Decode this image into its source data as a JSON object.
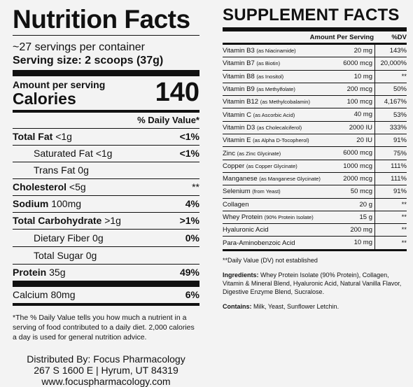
{
  "nutrition": {
    "title": "Nutrition Facts",
    "servings": "~27 servings per container",
    "serving_size_label": "Serving size",
    "serving_size_value": "2 scoops (37g)",
    "amount_per_serving": "Amount per serving",
    "calories_label": "Calories",
    "calories_value": "140",
    "dv_header": "% Daily Value*",
    "rows": [
      {
        "label": "Total Fat",
        "amount": "<1g",
        "dv": "<1%"
      },
      {
        "label": "Saturated Fat",
        "amount": "<1g",
        "dv": "<1%"
      },
      {
        "label": "Trans Fat",
        "amount": "0g",
        "dv": ""
      },
      {
        "label": "Cholesterol",
        "amount": "<5g",
        "dv": "**"
      },
      {
        "label": "Sodium",
        "amount": "100mg",
        "dv": "4%"
      },
      {
        "label": "Total Carbohydrate",
        "amount": ">1g",
        "dv": ">1%"
      },
      {
        "label": "Dietary Fiber",
        "amount": "0g",
        "dv": "0%"
      },
      {
        "label": "Total Sugar",
        "amount": "0g",
        "dv": ""
      },
      {
        "label": "Protein",
        "amount": "35g",
        "dv": "49%"
      },
      {
        "label": "Calcium",
        "amount": "80mg",
        "dv": "6%"
      }
    ],
    "footnote": "*The % Daily Value tells you how much a nutrient in a serving of food contributed to a daily diet. 2,000 calories a day is used for general nutrition advice.",
    "distributor_line1": "Distributed By: Focus Pharmacology",
    "distributor_line2": "267 S 1600 E | Hyrum, UT 84319",
    "distributor_line3": "www.focuspharmacology.com"
  },
  "supplement": {
    "title": "SUPPLEMENT FACTS",
    "header_amount": "Amount Per Serving",
    "header_dv": "%DV",
    "rows": [
      {
        "name": "Vitamin B3",
        "source": "(as Niacinamide)",
        "amount": "20 mg",
        "dv": "143%"
      },
      {
        "name": "Vitamin B7",
        "source": "(as Biotin)",
        "amount": "6000 mcg",
        "dv": "20,000%"
      },
      {
        "name": "Vitamin B8",
        "source": "(as Inositol)",
        "amount": "10 mg",
        "dv": "**"
      },
      {
        "name": "Vitamin B9",
        "source": "(as Methylfolate)",
        "amount": "200 mcg",
        "dv": "50%"
      },
      {
        "name": "Vitamin B12",
        "source": "(as Methylcobalamin)",
        "amount": "100 mcg",
        "dv": "4,167%"
      },
      {
        "name": "Vitamin C",
        "source": "(as Ascorbic Acid)",
        "amount": "40 mg",
        "dv": "53%"
      },
      {
        "name": "Vitamin D3",
        "source": "(as Cholecalciferol)",
        "amount": "2000 IU",
        "dv": "333%"
      },
      {
        "name": "Vitamin E",
        "source": "(as Alpha D-Tocopherol)",
        "amount": "20 IU",
        "dv": "91%"
      },
      {
        "name": "Zinc",
        "source": "(as Zinc Glycinate)",
        "amount": "6000 mcg",
        "dv": "75%"
      },
      {
        "name": "Copper",
        "source": "(as Copper Glycinate)",
        "amount": "1000 mcg",
        "dv": "111%"
      },
      {
        "name": "Manganese",
        "source": "(as Manganese Glycinate)",
        "amount": "2000 mcg",
        "dv": "111%"
      },
      {
        "name": "Selenium",
        "source": "(from Yeast)",
        "amount": "50 mcg",
        "dv": "91%"
      },
      {
        "name": "Collagen",
        "source": "",
        "amount": "20 g",
        "dv": "**"
      },
      {
        "name": "Whey Protein",
        "source": "(90% Protein Isolate)",
        "amount": "15 g",
        "dv": "**"
      },
      {
        "name": "Hyaluronic Acid",
        "source": "",
        "amount": "200 mg",
        "dv": "**"
      },
      {
        "name": "Para-Aminobenzoic Acid",
        "source": "",
        "amount": "10 mg",
        "dv": "**"
      }
    ],
    "dv_note": "**Daily Value (DV) not established",
    "ingredients_label": "Ingredients:",
    "ingredients_text": " Whey Protein Isolate (90% Protein), Collagen, Vitamin & Mineral Blend, Hyaluronic Acid, Natural Vanilla Flavor, Digestive Enzyme Blend, Sucralose.",
    "contains_label": "Contains:",
    "contains_text": " Milk, Yeast, Sunflower Letchin."
  }
}
